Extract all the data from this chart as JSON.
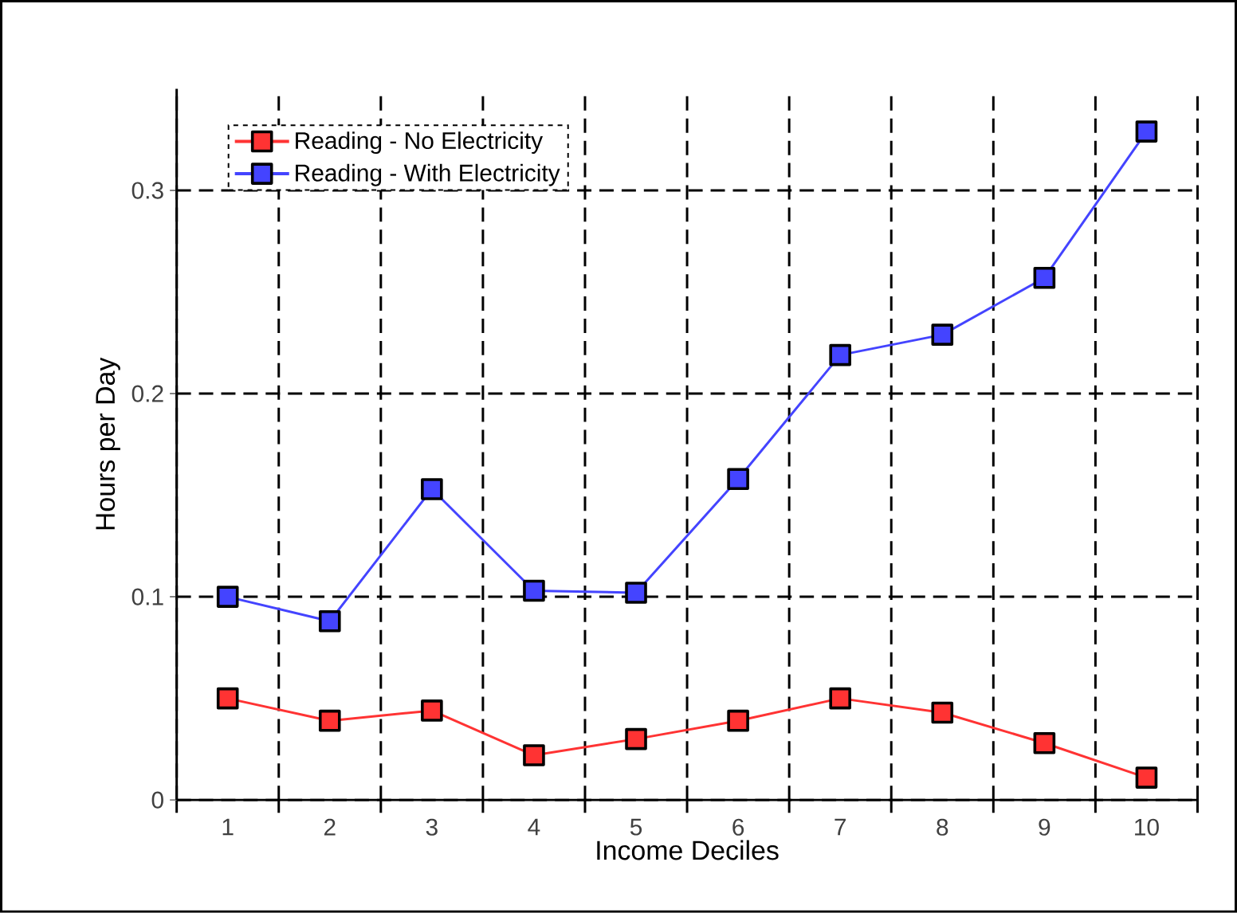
{
  "chart_data": {
    "type": "line",
    "xlabel": "Income Deciles",
    "ylabel": "Hours per Day",
    "categories": [
      "1",
      "2",
      "3",
      "4",
      "5",
      "6",
      "7",
      "8",
      "9",
      "10"
    ],
    "series": [
      {
        "name": "Reading - No Electricity",
        "color": "#ff3333",
        "values": [
          0.05,
          0.039,
          0.044,
          0.022,
          0.03,
          0.039,
          0.05,
          0.043,
          0.028,
          0.011
        ]
      },
      {
        "name": "Reading - With Electricity",
        "color": "#4444ff",
        "values": [
          0.1,
          0.088,
          0.153,
          0.103,
          0.102,
          0.158,
          0.219,
          0.229,
          0.257,
          0.329
        ]
      }
    ],
    "ylim": [
      0,
      0.35
    ],
    "yticks": [
      0,
      0.1,
      0.2,
      0.3
    ],
    "grid": true,
    "legend": "top left",
    "marker": "square",
    "line_style": "solid"
  }
}
